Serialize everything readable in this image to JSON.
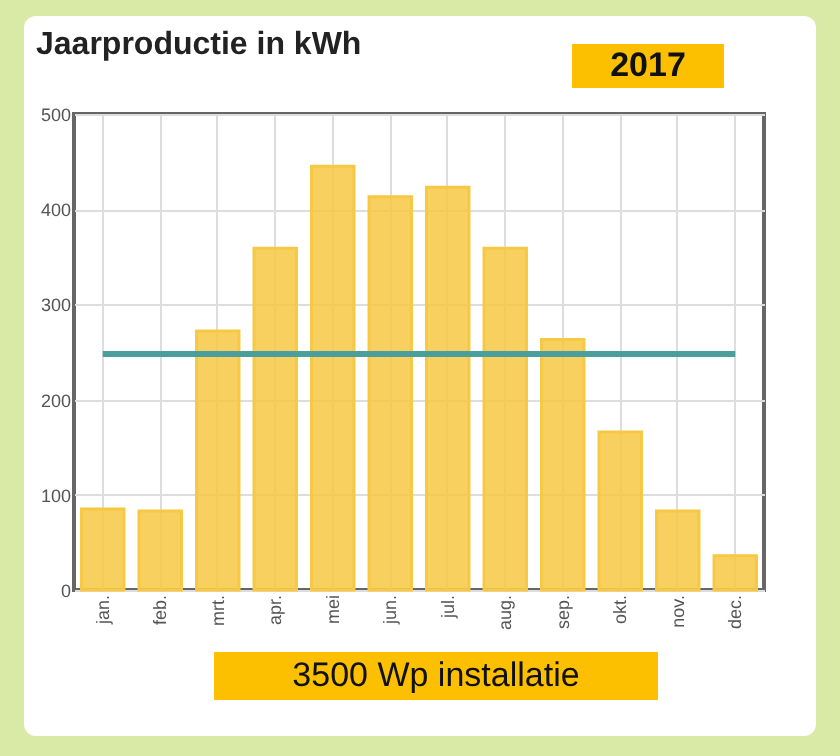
{
  "chart_data": {
    "type": "bar",
    "title": "Jaarproductie in kWh",
    "subtitle": "2017",
    "categories": [
      "jan.",
      "feb.",
      "mrt.",
      "apr.",
      "mei",
      "jun.",
      "jul.",
      "aug.",
      "sep.",
      "okt.",
      "nov.",
      "dec."
    ],
    "values": [
      85,
      83,
      272,
      359,
      445,
      413,
      423,
      359,
      263,
      166,
      83,
      36
    ],
    "color": "#f7c843",
    "ylim": [
      0,
      500
    ],
    "yticks": [
      0,
      100,
      200,
      300,
      400,
      500
    ],
    "grid": true,
    "ref_lines": [
      {
        "axis": "y",
        "value": 248,
        "color": "#4a9e9c"
      }
    ],
    "annotations": [
      "3500 Wp installatie"
    ]
  }
}
